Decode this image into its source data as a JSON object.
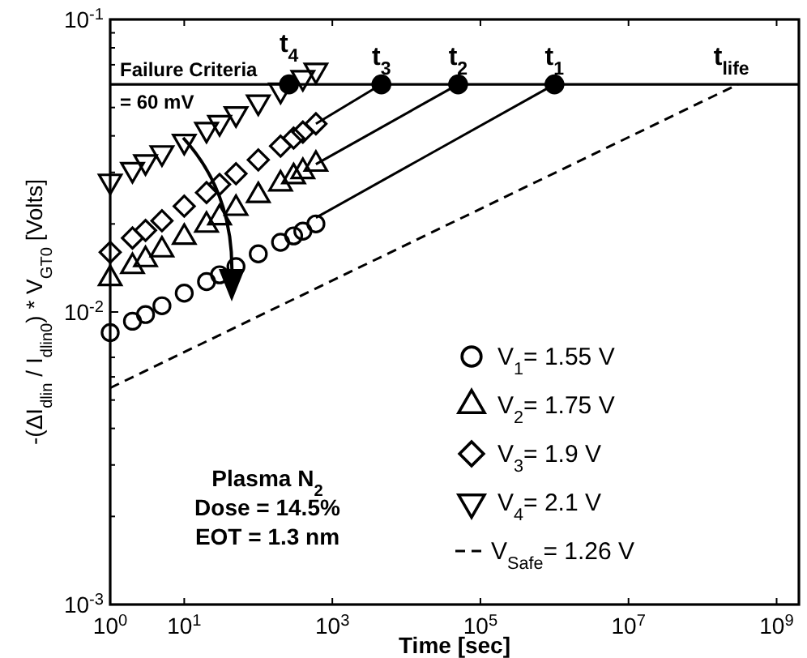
{
  "chart_data": {
    "type": "scatter",
    "xlabel": "Time [sec]",
    "ylabel": "-(ΔI$_{dlin}$ / I$_{dlin0}$) * V$_{GT0}$ [Volts]",
    "log": "xy",
    "xlim": [
      1,
      2000000000
    ],
    "ylim": [
      0.001,
      0.1
    ],
    "xticks": [
      {
        "value": 1,
        "label": "10$^{0}$"
      },
      {
        "value": 10,
        "label": "10$^{1}$"
      },
      {
        "value": 1000,
        "label": "10$^{3}$"
      },
      {
        "value": 100000,
        "label": "10$^{5}$"
      },
      {
        "value": 10000000,
        "label": "10$^{7}$"
      },
      {
        "value": 1000000000,
        "label": "10$^{9}$"
      }
    ],
    "yticks": [
      {
        "value": 0.001,
        "label": "10$^{-3}$"
      },
      {
        "value": 0.01,
        "label": "10$^{-2}$"
      },
      {
        "value": 0.1,
        "label": "10$^{-1}$"
      }
    ],
    "grid": false,
    "legend": "bottom right",
    "series": [
      {
        "name": "V$_{1}$= 1.55 V",
        "marker": "circle",
        "color": "#000000",
        "x": [
          1,
          2,
          3,
          5,
          10,
          20,
          30,
          50,
          100,
          200,
          300,
          400,
          600
        ],
        "values": [
          0.0085,
          0.0093,
          0.0098,
          0.0105,
          0.0116,
          0.0127,
          0.0134,
          0.0143,
          0.0158,
          0.0173,
          0.0182,
          0.0189,
          0.02
        ]
      },
      {
        "name": "V$_{2}$= 1.75 V",
        "marker": "triangle",
        "color": "#000000",
        "x": [
          1,
          2,
          3,
          5,
          10,
          20,
          30,
          50,
          100,
          200,
          300,
          400,
          600
        ],
        "values": [
          0.013,
          0.0143,
          0.0151,
          0.0163,
          0.018,
          0.0198,
          0.021,
          0.0226,
          0.025,
          0.0274,
          0.029,
          0.0302,
          0.032
        ]
      },
      {
        "name": "V$_{3}$= 1.9 V",
        "marker": "diamond",
        "color": "#000000",
        "x": [
          1,
          2,
          3,
          5,
          10,
          20,
          30,
          50,
          100,
          200,
          300,
          400,
          600
        ],
        "values": [
          0.016,
          0.0179,
          0.019,
          0.0205,
          0.023,
          0.0256,
          0.0273,
          0.0297,
          0.0331,
          0.0369,
          0.0393,
          0.0412,
          0.044
        ]
      },
      {
        "name": "V$_{4}$= 2.1 V",
        "marker": "triangle-down",
        "color": "#000000",
        "x": [
          1,
          2,
          3,
          5,
          10,
          20,
          30,
          50,
          100,
          200,
          400,
          600
        ],
        "values": [
          0.028,
          0.0307,
          0.0326,
          0.035,
          0.0383,
          0.0421,
          0.0444,
          0.0476,
          0.0522,
          0.0573,
          0.0633,
          0.067
        ]
      },
      {
        "type": "line",
        "color": "#000000",
        "line_style": "solid",
        "x": [
          600,
          1000000
        ],
        "values": [
          0.021,
          0.06
        ]
      },
      {
        "type": "line",
        "color": "#000000",
        "line_style": "solid",
        "x": [
          600,
          50000
        ],
        "values": [
          0.032,
          0.06
        ]
      },
      {
        "type": "line",
        "color": "#000000",
        "line_style": "solid",
        "x": [
          600,
          4600
        ],
        "values": [
          0.044,
          0.06
        ]
      },
      {
        "name": "V$_{Safe}$= 1.26 V",
        "type": "line",
        "color": "#000000",
        "line_style": "dashed",
        "x": [
          1,
          300000000
        ],
        "values": [
          0.0055,
          0.06
        ]
      },
      {
        "marker": "circle",
        "color": "#000000",
        "x": [
          260,
          4600,
          50000,
          1000000
        ],
        "values": [
          0.06,
          0.06,
          0.06,
          0.06
        ]
      }
    ],
    "ref_lines": [
      {
        "axis": "y",
        "value": 0.06,
        "label": "Failure Criteria = 60 mV",
        "color": "#000000"
      }
    ],
    "annotations": [
      {
        "text": "t$_{4}$",
        "x": 260,
        "y": 0.06
      },
      {
        "text": "t$_{3}$",
        "x": 4600,
        "y": 0.06
      },
      {
        "text": "t$_{2}$",
        "x": 50000,
        "y": 0.06
      },
      {
        "text": "t$_{1}$",
        "x": 1000000,
        "y": 0.06
      },
      {
        "text": "t$_{life}$",
        "x": 300000000,
        "y": 0.06
      },
      "Plasma N$_{2}$",
      "Dose = 14.5%",
      "EOT = 1.3 nm"
    ]
  }
}
